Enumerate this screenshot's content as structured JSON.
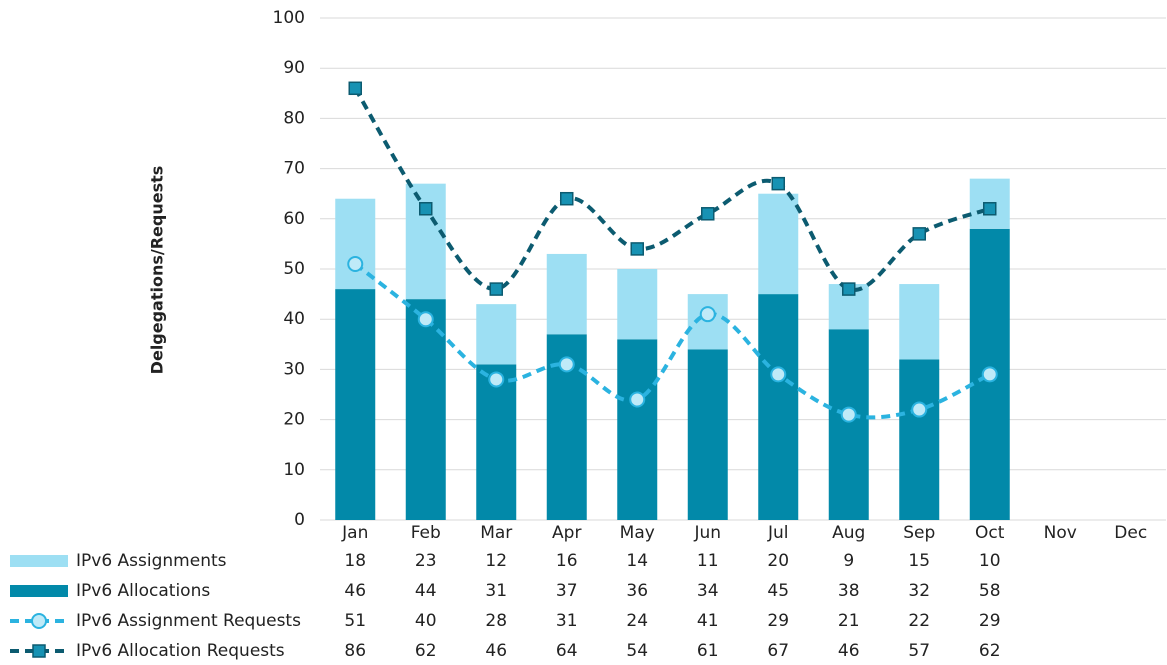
{
  "chart_data": {
    "type": "bar",
    "y_label": "Delgegations/Requests",
    "categories": [
      "Jan",
      "Feb",
      "Mar",
      "Apr",
      "May",
      "Jun",
      "Jul",
      "Aug",
      "Sep",
      "Oct",
      "Nov",
      "Dec"
    ],
    "series": [
      {
        "name": "IPv6 Assignments",
        "type": "bar",
        "color": "#9ddff3",
        "values": [
          18,
          23,
          12,
          16,
          14,
          11,
          20,
          9,
          15,
          10,
          null,
          null
        ]
      },
      {
        "name": "IPv6 Allocations",
        "type": "bar",
        "color": "#0289a9",
        "values": [
          46,
          44,
          31,
          37,
          36,
          34,
          45,
          38,
          32,
          58,
          null,
          null
        ]
      },
      {
        "name": "IPv6 Assignment Requests",
        "type": "line",
        "marker": "circle",
        "color": "#2bb3e0",
        "values": [
          51,
          40,
          28,
          31,
          24,
          41,
          29,
          21,
          22,
          29,
          null,
          null
        ]
      },
      {
        "name": "IPv6 Allocation Requests",
        "type": "line",
        "marker": "square",
        "color": "#0c5b70",
        "values": [
          86,
          62,
          46,
          64,
          54,
          61,
          67,
          46,
          57,
          62,
          null,
          null
        ]
      }
    ],
    "ylim": [
      0,
      100
    ],
    "yticks": [
      0,
      10,
      20,
      30,
      40,
      50,
      60,
      70,
      80,
      90,
      100
    ],
    "grid": true
  }
}
